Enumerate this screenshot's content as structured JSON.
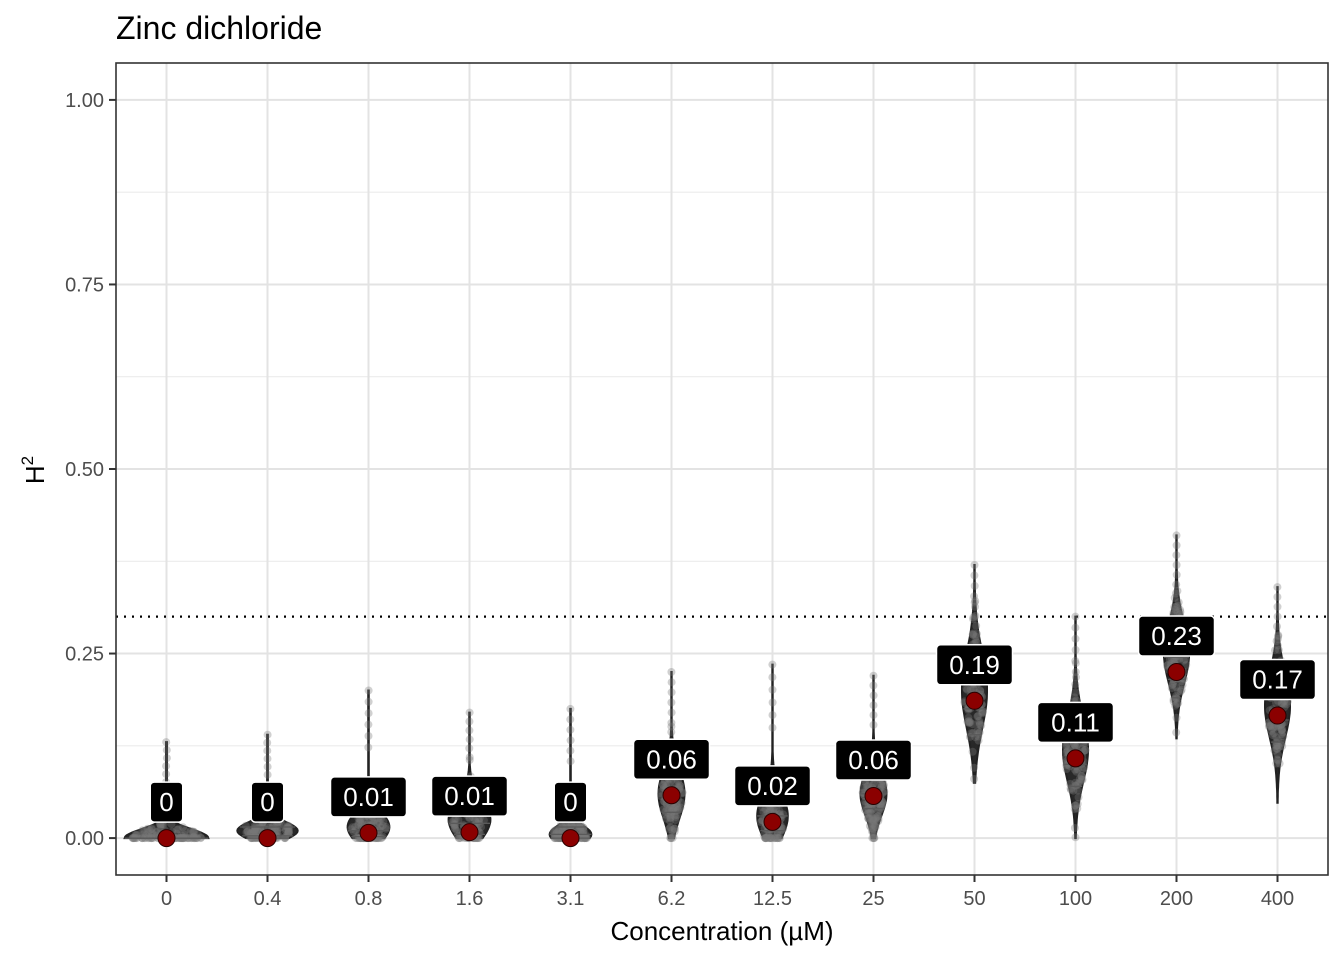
{
  "chart_data": {
    "type": "violin",
    "title": "Zinc dichloride",
    "xlabel": "Concentration (µM)",
    "ylabel": "H",
    "ylabel_superscript": "2",
    "categories": [
      "0",
      "0.4",
      "0.8",
      "1.6",
      "3.1",
      "6.2",
      "12.5",
      "25",
      "50",
      "100",
      "200",
      "400"
    ],
    "ylim": [
      -0.05,
      1.05
    ],
    "yticks": [
      0.0,
      0.25,
      0.5,
      0.75,
      1.0
    ],
    "ytick_labels": [
      "0.00",
      "0.25",
      "0.50",
      "0.75",
      "1.00"
    ],
    "threshold": 0.3,
    "series": [
      {
        "name": "mean",
        "values": [
          0.0,
          0.0,
          0.007,
          0.008,
          0.0,
          0.058,
          0.022,
          0.057,
          0.186,
          0.108,
          0.225,
          0.166
        ]
      },
      {
        "name": "label",
        "values": [
          "0",
          "0",
          "0.01",
          "0.01",
          "0",
          "0.06",
          "0.02",
          "0.06",
          "0.19",
          "0.11",
          "0.23",
          "0.17"
        ]
      },
      {
        "name": "max",
        "values": [
          0.13,
          0.14,
          0.2,
          0.17,
          0.175,
          0.225,
          0.235,
          0.22,
          0.37,
          0.3,
          0.41,
          0.34
        ]
      },
      {
        "name": "min",
        "values": [
          0.0,
          0.0,
          0.0,
          0.0,
          0.0,
          0.0,
          0.0,
          0.0,
          0.075,
          0.0,
          0.135,
          0.048
        ]
      },
      {
        "name": "median",
        "values": [
          0.0,
          0.003,
          0.01,
          0.02,
          0.005,
          0.057,
          0.03,
          0.06,
          0.175,
          0.1,
          0.215,
          0.16
        ]
      },
      {
        "name": "q1",
        "values": [
          0.0,
          0.0,
          0.002,
          0.005,
          0.0,
          0.035,
          0.01,
          0.04,
          0.14,
          0.07,
          0.19,
          0.13
        ]
      },
      {
        "name": "q3",
        "values": [
          0.0,
          0.015,
          0.03,
          0.04,
          0.015,
          0.08,
          0.05,
          0.08,
          0.21,
          0.13,
          0.245,
          0.19
        ]
      },
      {
        "name": "mode",
        "values": [
          0.0,
          0.01,
          0.015,
          0.025,
          0.005,
          0.06,
          0.03,
          0.06,
          0.2,
          0.12,
          0.25,
          0.18
        ]
      },
      {
        "name": "width",
        "values": [
          0.9,
          0.65,
          0.45,
          0.45,
          0.45,
          0.28,
          0.33,
          0.28,
          0.27,
          0.27,
          0.27,
          0.27
        ]
      }
    ]
  }
}
